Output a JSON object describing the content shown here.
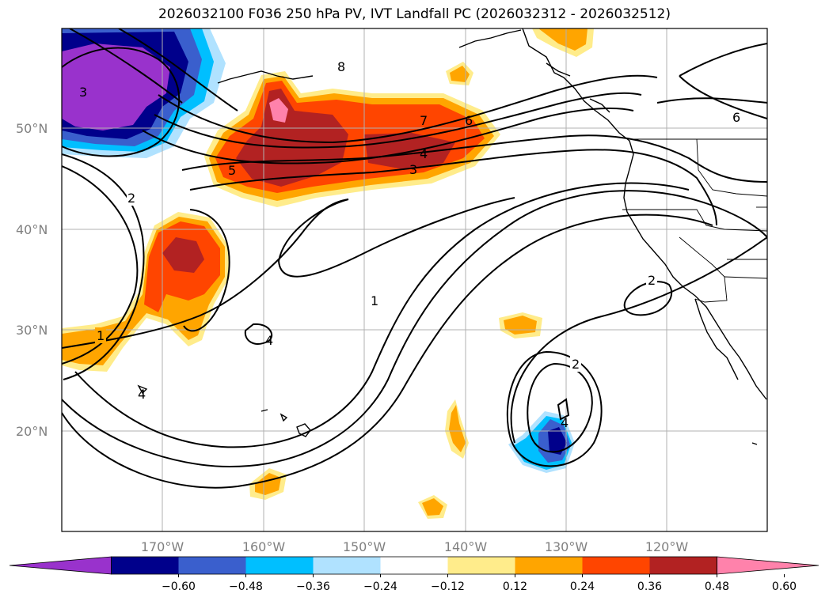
{
  "title": "2026032100 F036 250 hPa PV, IVT Landfall PC (2026032312 - 2026032512)",
  "map": {
    "lat_labels": [
      "50°N",
      "40°N",
      "30°N",
      "20°N"
    ],
    "lon_labels": [
      "170°W",
      "160°W",
      "150°W",
      "140°W",
      "130°W",
      "120°W"
    ],
    "contour_labels": [
      "8",
      "3",
      "2",
      "1",
      "5",
      "7",
      "6",
      "4",
      "3",
      "1",
      "4",
      "4",
      "2",
      "2",
      "4",
      "6"
    ]
  },
  "colorbar": {
    "colors": [
      "#9932cc",
      "#00008b",
      "#3a5fcd",
      "#00bfff",
      "#b0e2ff",
      "#ffffff",
      "#ffec8b",
      "#ffa500",
      "#ff4500",
      "#b22222",
      "#ff82ab"
    ],
    "tick_labels": [
      "−0.60",
      "−0.48",
      "−0.36",
      "−0.24",
      "−0.12",
      "0.12",
      "0.24",
      "0.36",
      "0.48",
      "0.60"
    ]
  },
  "colors": {
    "axis": "#000000",
    "grid": "#b0b0b0",
    "label_gray": "#808080"
  }
}
